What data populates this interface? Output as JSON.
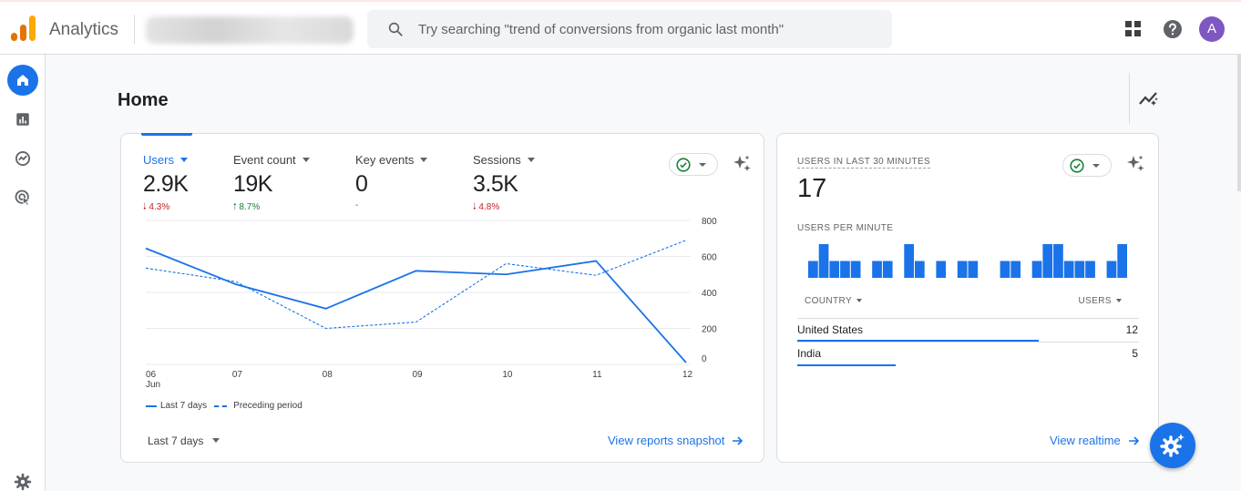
{
  "header": {
    "app_title": "Analytics",
    "search_placeholder": "Try searching \"trend of conversions from organic last month\"",
    "avatar_letter": "A"
  },
  "sidebar": {
    "items": [
      {
        "name": "home",
        "icon": "home-icon",
        "active": true
      },
      {
        "name": "reports",
        "icon": "bar-chart-icon"
      },
      {
        "name": "explore",
        "icon": "explore-icon"
      },
      {
        "name": "advertising",
        "icon": "advertising-icon"
      },
      {
        "name": "admin",
        "icon": "gear-icon"
      }
    ]
  },
  "page": {
    "title": "Home"
  },
  "overview": {
    "metrics": [
      {
        "label": "Users",
        "value": "2.9K",
        "change": "4.3%",
        "direction": "down"
      },
      {
        "label": "Event count",
        "value": "19K",
        "change": "8.7%",
        "direction": "up"
      },
      {
        "label": "Key events",
        "value": "0",
        "change": "-",
        "direction": "flat"
      },
      {
        "label": "Sessions",
        "value": "3.5K",
        "change": "4.8%",
        "direction": "down"
      }
    ],
    "legend": {
      "current": "Last 7 days",
      "previous": "Preceding period"
    },
    "date_range": "Last 7 days",
    "link": "View reports snapshot"
  },
  "realtime": {
    "title": "USERS IN LAST 30 MINUTES",
    "value": "17",
    "subtitle": "USERS PER MINUTE",
    "col_country": "COUNTRY",
    "col_users": "USERS",
    "rows": [
      {
        "country": "United States",
        "users": "12",
        "share": 0.71
      },
      {
        "country": "India",
        "users": "5",
        "share": 0.29
      }
    ],
    "per_minute": [
      1,
      2,
      1,
      1,
      1,
      0,
      1,
      1,
      0,
      2,
      1,
      0,
      1,
      0,
      1,
      1,
      0,
      0,
      1,
      1,
      0,
      1,
      2,
      2,
      1,
      1,
      1,
      0,
      1,
      2
    ],
    "link": "View realtime"
  },
  "colors": {
    "accent": "#1a73e8",
    "down": "#c5221f",
    "up": "#188038"
  },
  "chart_data": {
    "type": "line",
    "x": [
      "06",
      "07",
      "08",
      "09",
      "10",
      "11",
      "12"
    ],
    "x_sublabel_first": "Jun",
    "y_ticks": [
      "0",
      "200",
      "400",
      "600",
      "800"
    ],
    "ylim": [
      0,
      800
    ],
    "y_axis_side": "right",
    "grid": true,
    "series": [
      {
        "name": "Last 7 days",
        "style": "solid",
        "values": [
          645,
          445,
          310,
          520,
          500,
          575,
          10
        ]
      },
      {
        "name": "Preceding period",
        "style": "dashed",
        "values": [
          535,
          460,
          200,
          235,
          560,
          495,
          690
        ]
      }
    ],
    "legend": "bottom-left"
  }
}
